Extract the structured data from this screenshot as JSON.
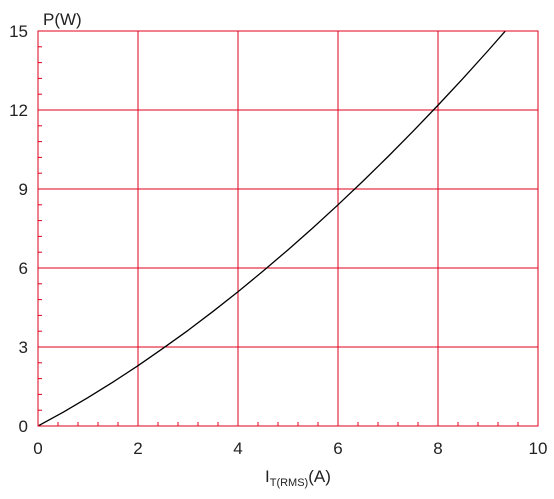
{
  "chart_data": {
    "type": "line",
    "title": "",
    "ylabel": "P(W)",
    "xlabel": {
      "main": "I",
      "subscript": "T(RMS)",
      "unit": "(A)"
    },
    "xlim": [
      0,
      10
    ],
    "ylim": [
      0,
      15
    ],
    "x_ticks": [
      0,
      2,
      4,
      6,
      8,
      10
    ],
    "x_tick_labels": [
      "0",
      "2",
      "4",
      "6",
      "8",
      "10"
    ],
    "y_ticks": [
      0,
      3,
      6,
      9,
      12,
      15
    ],
    "y_tick_labels": [
      "0",
      "3",
      "6",
      "9",
      "12",
      "15"
    ],
    "grid": true,
    "grid_color": "#e0001b",
    "minor_ticks_per_major": 5,
    "series": [
      {
        "color": "#000000",
        "x": [
          0,
          0.5,
          1,
          1.5,
          2,
          2.5,
          3,
          3.5,
          4,
          4.5,
          5,
          5.5,
          6,
          6.5,
          7,
          7.5,
          8,
          8.5,
          9,
          9.5,
          10
        ],
        "y": [
          0,
          0.52,
          1.08,
          1.67,
          2.29,
          2.95,
          3.63,
          4.35,
          5.1,
          5.88,
          6.69,
          7.53,
          8.4,
          9.3,
          10.23,
          11.19,
          12.18,
          13.2,
          14.25,
          15.33,
          16.44
        ]
      }
    ]
  }
}
